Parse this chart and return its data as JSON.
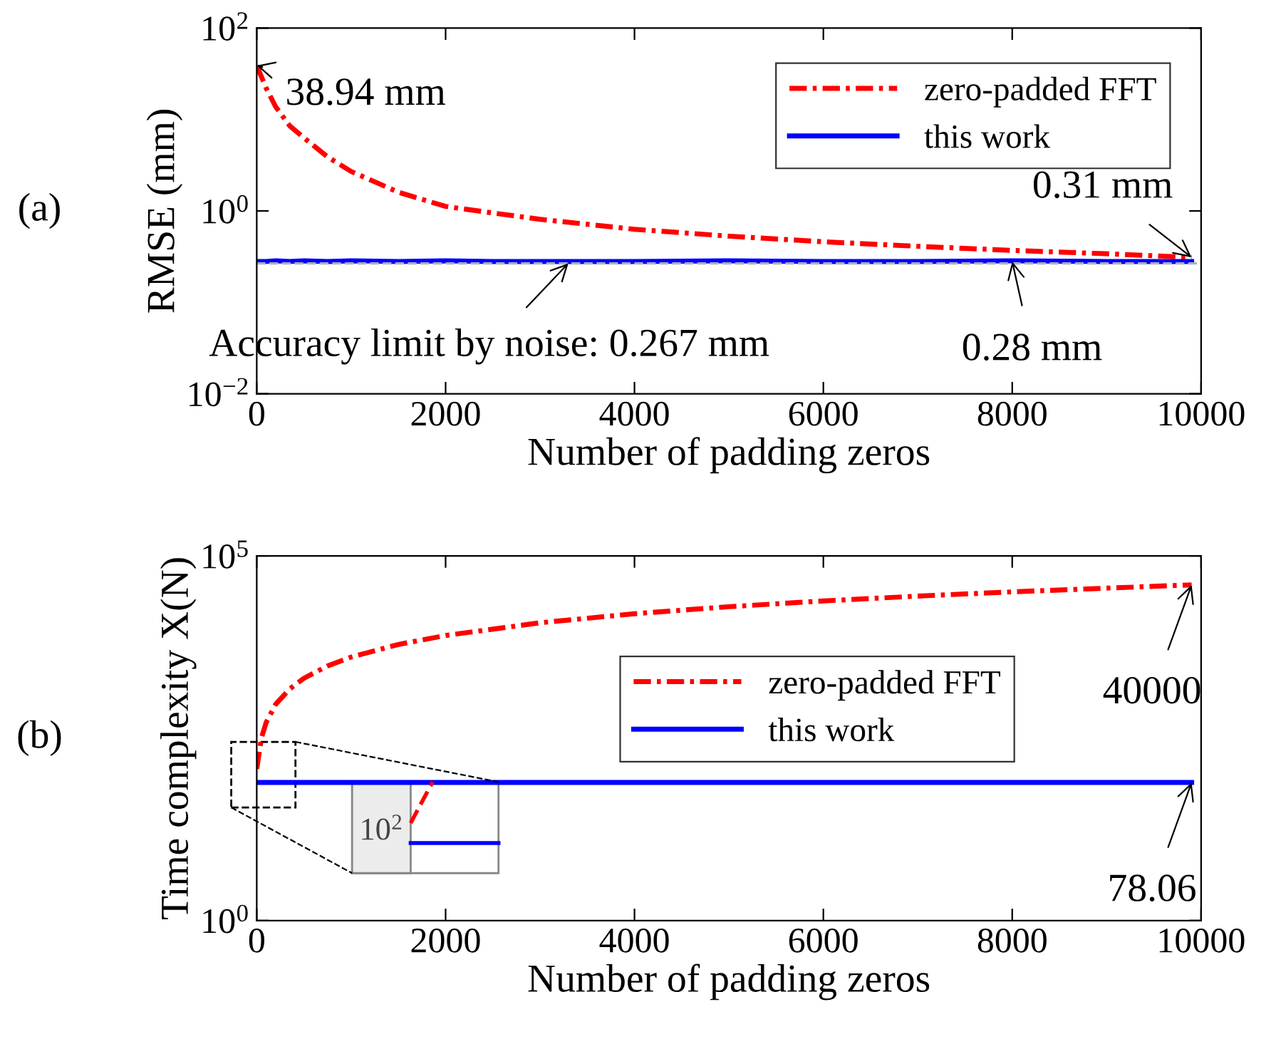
{
  "chart_data": [
    {
      "type": "line",
      "xlabel": "Number of padding zeros",
      "ylabel": "RMSE (mm)",
      "log": "y",
      "xlim": [
        0,
        10000
      ],
      "xticks": [
        0,
        2000,
        4000,
        6000,
        8000,
        10000
      ],
      "ylim": [
        0.01,
        100
      ],
      "yticks": [
        {
          "value": 0.01,
          "label": "10$^{−2}$"
        },
        {
          "value": 1,
          "label": "10$^{0}$"
        },
        {
          "value": 100,
          "label": "10$^{2}$"
        }
      ],
      "x": [
        0,
        100,
        200,
        350,
        500,
        750,
        1000,
        1500,
        2000,
        2500,
        3000,
        4000,
        5000,
        6000,
        7000,
        8000,
        9000,
        9900
      ],
      "series": [
        {
          "name": "zero-padded FFT",
          "color": "#ff0000",
          "line_style": "dashdot",
          "values": [
            38.94,
            22,
            13.8,
            8.5,
            6.3,
            3.9,
            2.7,
            1.6,
            1.12,
            0.95,
            0.81,
            0.63,
            0.53,
            0.46,
            0.41,
            0.37,
            0.34,
            0.31
          ]
        },
        {
          "name": "this work",
          "color": "#0000ff",
          "line_style": "solid",
          "values": [
            0.28,
            0.28,
            0.285,
            0.28,
            0.285,
            0.28,
            0.285,
            0.28,
            0.285,
            0.28,
            0.28,
            0.28,
            0.285,
            0.28,
            0.28,
            0.285,
            0.28,
            0.28
          ]
        }
      ],
      "ref_lines": [
        {
          "axis": "y",
          "value": 0.267,
          "label": "Accuracy limit by noise: 0.267 mm",
          "color": "#b0b0b0",
          "line_style": "dashed"
        }
      ],
      "annotations": [
        {
          "text": "38.94 mm",
          "x": 0,
          "y": 38.94
        },
        {
          "text": "0.31 mm",
          "x": 9900,
          "y": 0.31
        },
        {
          "text": "0.28 mm",
          "x": 8000,
          "y": 0.28
        },
        "(a)"
      ],
      "legend": "top right",
      "grid": false,
      "marker": "none"
    },
    {
      "type": "line",
      "xlabel": "Number of padding zeros",
      "ylabel": "Time complexity X(N)",
      "log": "y",
      "xlim": [
        0,
        10000
      ],
      "xticks": [
        0,
        2000,
        4000,
        6000,
        8000,
        10000
      ],
      "ylim": [
        1,
        100000
      ],
      "yticks": [
        {
          "value": 1,
          "label": "10$^{0}$"
        },
        {
          "value": 100000,
          "label": "10$^{5}$"
        }
      ],
      "x": [
        0,
        50,
        100,
        200,
        350,
        500,
        750,
        1000,
        1500,
        2000,
        3000,
        4000,
        5000,
        6000,
        7000,
        8000,
        9000,
        9900
      ],
      "series": [
        {
          "name": "zero-padded FFT",
          "color": "#ff0000",
          "line_style": "dashdot",
          "values": [
            120,
            320,
            520,
            920,
            1500,
            2100,
            3100,
            4100,
            6100,
            8100,
            12100,
            16100,
            20100,
            24100,
            28100,
            32100,
            36100,
            40000
          ]
        },
        {
          "name": "this work",
          "color": "#0000ff",
          "line_style": "solid",
          "values": [
            78.06,
            78.06,
            78.06,
            78.06,
            78.06,
            78.06,
            78.06,
            78.06,
            78.06,
            78.06,
            78.06,
            78.06,
            78.06,
            78.06,
            78.06,
            78.06,
            78.06,
            78.06
          ]
        }
      ],
      "annotations": [
        {
          "text": "40000",
          "x": 9900,
          "y": 40000
        },
        {
          "text": "78.06",
          "x": 9900,
          "y": 78.06
        },
        "(b)",
        "10$^{2}$"
      ],
      "legend": "right",
      "grid": false,
      "marker": "none"
    }
  ]
}
